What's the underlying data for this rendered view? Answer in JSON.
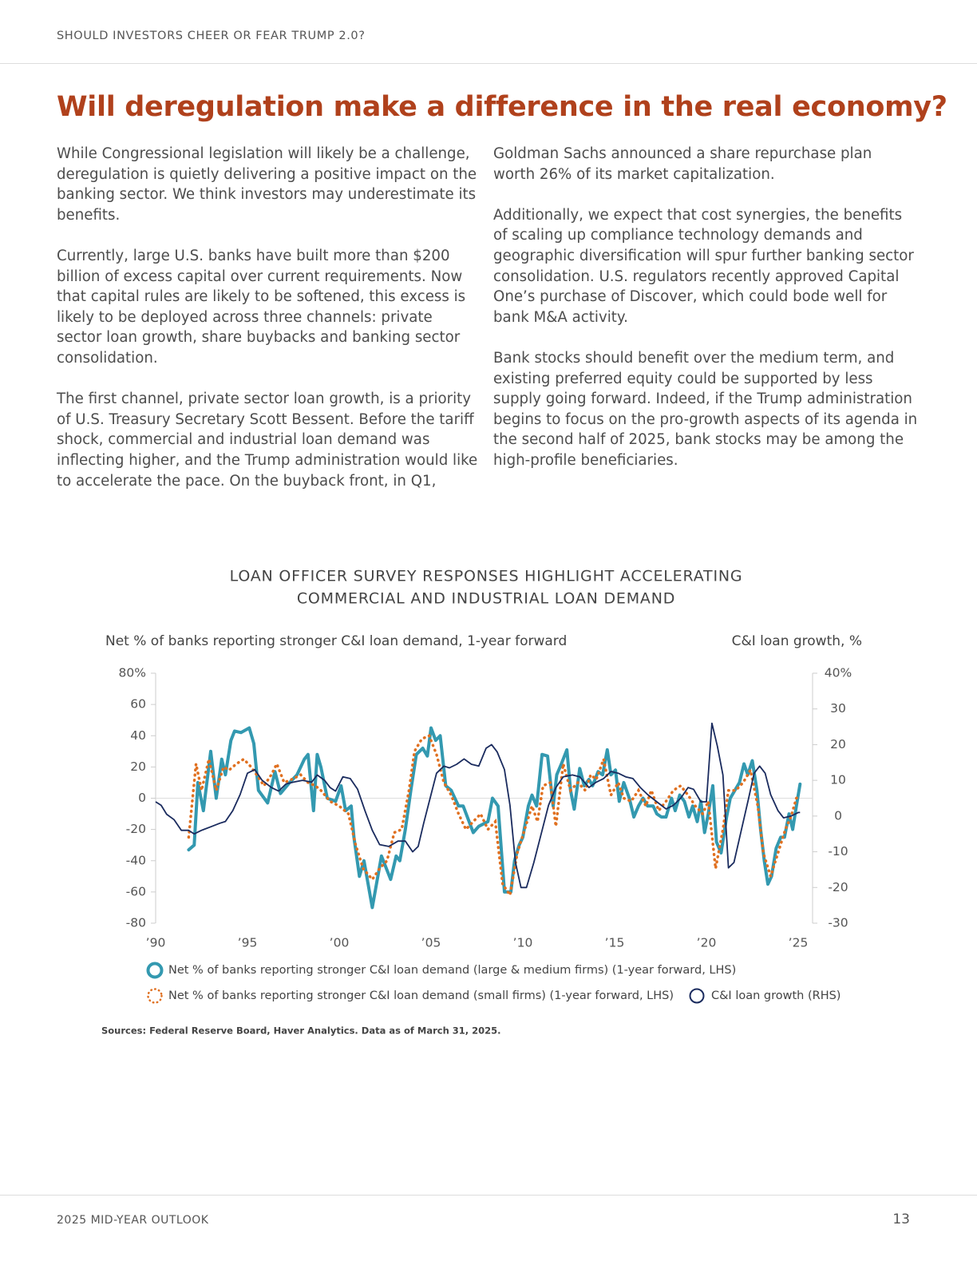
{
  "header": {
    "running_title": "SHOULD INVESTORS CHEER OR FEAR TRUMP 2.0?"
  },
  "title": "Will deregulation make a difference in the real economy?",
  "body": {
    "left_column": [
      "While Congressional legislation will likely be a challenge, deregulation is quietly delivering a positive impact on the banking sector. We think investors may underestimate its benefits.",
      "Currently, large U.S. banks have built more than $200 billion of excess capital over current requirements. Now that capital rules are likely to be softened, this excess is likely to be deployed across three channels: private sector loan growth, share buybacks and banking sector consolidation.",
      "The first channel, private sector loan growth, is a priority of U.S. Treasury Secretary Scott Bessent. Before the tariff shock, commercial and industrial loan demand was inflecting higher, and the Trump administration would like to accelerate the pace. On the buyback front, in Q1,"
    ],
    "right_column": [
      "Goldman Sachs announced a share repurchase plan worth 26% of its market capitalization.",
      "Additionally, we expect that cost synergies, the benefits of scaling up compliance technology demands and geographic diversification will spur further banking sector consolidation. U.S. regulators recently approved Capital One’s purchase of Discover, which could bode well for bank M&A activity.",
      "Bank stocks should benefit over the medium term, and existing preferred equity could be supported by less supply going forward. Indeed, if the Trump administration begins to focus on the pro-growth aspects of its agenda in the second half of 2025, bank stocks may be among the high-profile beneficiaries."
    ]
  },
  "chart_data": {
    "type": "line",
    "title": [
      "LOAN OFFICER SURVEY RESPONSES HIGHLIGHT ACCELERATING",
      "COMMERCIAL AND INDUSTRIAL LOAN DEMAND"
    ],
    "y_label": "Net % of banks reporting stronger C&I loan demand, 1-year forward",
    "y2_label": "C&I loan growth, %",
    "xlim": [
      1990,
      2025
    ],
    "xticks": [
      {
        "value": 1990,
        "label": "’90"
      },
      {
        "value": 1995,
        "label": "’95"
      },
      {
        "value": 2000,
        "label": "’00"
      },
      {
        "value": 2005,
        "label": "’05"
      },
      {
        "value": 2010,
        "label": "’10"
      },
      {
        "value": 2015,
        "label": "’15"
      },
      {
        "value": 2020,
        "label": "’20"
      },
      {
        "value": 2025,
        "label": "’25"
      }
    ],
    "ylim": [
      -80,
      80
    ],
    "yticks": [
      -80,
      -60,
      -40,
      -20,
      0,
      20,
      40,
      60,
      {
        "value": 80,
        "label": "80%"
      }
    ],
    "y2lim": [
      -30,
      40
    ],
    "y2ticks": [
      -30,
      -20,
      -10,
      0,
      10,
      20,
      30,
      {
        "value": 40,
        "label": "40%"
      }
    ],
    "series": [
      {
        "name": "Net % of banks reporting stronger C&I loan demand (large & medium firms) (1-year forward, LHS)",
        "color": "#3399b0",
        "style": "solid",
        "x": [
          1991.8,
          1992.1,
          1992.3,
          1992.6,
          1993.0,
          1993.3,
          1993.6,
          1993.8,
          1994.1,
          1994.3,
          1994.65,
          1995.1,
          1995.35,
          1995.6,
          1996.1,
          1996.5,
          1996.8,
          1997.3,
          1997.7,
          1998.1,
          1998.3,
          1998.6,
          1998.8,
          1999.0,
          1999.35,
          1999.8,
          2000.1,
          2000.35,
          2000.65,
          2000.8,
          2001.1,
          2001.35,
          2001.8,
          2002.3,
          2002.8,
          2003.1,
          2003.3,
          2003.6,
          2003.9,
          2004.2,
          2004.55,
          2004.8,
          2005.0,
          2005.25,
          2005.5,
          2005.8,
          2006.1,
          2006.5,
          2006.75,
          2007.3,
          2007.6,
          2008.1,
          2008.35,
          2008.65,
          2009.0,
          2009.35,
          2009.55,
          2009.8,
          2010.0,
          2010.3,
          2010.5,
          2010.75,
          2011.05,
          2011.35,
          2011.65,
          2011.85,
          2012.1,
          2012.4,
          2012.6,
          2012.8,
          2013.1,
          2013.35,
          2013.6,
          2013.8,
          2014.1,
          2014.35,
          2014.6,
          2014.8,
          2015.05,
          2015.25,
          2015.5,
          2015.8,
          2016.05,
          2016.3,
          2016.55,
          2016.8,
          2017.1,
          2017.3,
          2017.55,
          2017.8,
          2018.1,
          2018.3,
          2018.55,
          2018.8,
          2019.05,
          2019.25,
          2019.5,
          2019.7,
          2019.9,
          2020.1,
          2020.35,
          2020.55,
          2020.8,
          2021.1,
          2021.3,
          2021.55,
          2021.8,
          2022.05,
          2022.25,
          2022.5,
          2022.75,
          2022.95,
          2023.15,
          2023.35,
          2023.55,
          2023.8,
          2024.05,
          2024.25,
          2024.5,
          2024.7,
          2024.9,
          2025.1
        ],
        "values": [
          -33,
          -30,
          10,
          -8,
          30,
          0,
          25,
          15,
          37,
          43,
          42,
          45,
          35,
          5,
          -3,
          17,
          3,
          10,
          15,
          25,
          28,
          -8,
          28,
          20,
          0,
          -2,
          8,
          -8,
          -5,
          -25,
          -50,
          -40,
          -70,
          -37,
          -52,
          -37,
          -40,
          -20,
          5,
          28,
          32,
          27,
          45,
          37,
          40,
          8,
          5,
          -5,
          -5,
          -22,
          -18,
          -15,
          0,
          -5,
          -60,
          -60,
          -40,
          -30,
          -25,
          -5,
          2,
          -5,
          28,
          27,
          -5,
          15,
          22,
          31,
          5,
          -7,
          19,
          8,
          12,
          8,
          17,
          15,
          31,
          15,
          18,
          -2,
          10,
          0,
          -12,
          -5,
          0,
          -5,
          -5,
          -10,
          -12,
          -12,
          0,
          -8,
          2,
          -2,
          -12,
          -5,
          -15,
          -2,
          -22,
          -10,
          8,
          -28,
          -35,
          -12,
          0,
          5,
          10,
          22,
          15,
          24,
          5,
          -20,
          -40,
          -55,
          -50,
          -32,
          -25,
          -25,
          -10,
          -20,
          -5,
          9
        ]
      },
      {
        "name": "Net % of banks reporting stronger C&I loan demand (small firms) (1-year forward, LHS)",
        "color": "#e07020",
        "style": "dotted",
        "x": [
          1991.8,
          1992.2,
          1992.5,
          1992.9,
          1993.3,
          1993.7,
          1994.0,
          1994.4,
          1994.8,
          1995.2,
          1995.5,
          1995.9,
          1996.3,
          1996.6,
          1997.0,
          1997.4,
          1997.9,
          1998.3,
          1998.7,
          1999.0,
          1999.5,
          2000.0,
          2000.5,
          2000.9,
          2001.3,
          2001.8,
          2002.2,
          2002.6,
          2003.0,
          2003.4,
          2003.8,
          2004.1,
          2004.5,
          2004.9,
          2005.3,
          2005.7,
          2006.1,
          2006.5,
          2006.9,
          2007.3,
          2007.7,
          2008.1,
          2008.5,
          2008.9,
          2009.3,
          2009.7,
          2010.1,
          2010.5,
          2010.8,
          2011.1,
          2011.5,
          2011.8,
          2012.2,
          2012.6,
          2013.0,
          2013.4,
          2013.7,
          2014.0,
          2014.4,
          2014.8,
          2015.2,
          2015.5,
          2015.9,
          2016.3,
          2016.7,
          2017.0,
          2017.4,
          2017.8,
          2018.2,
          2018.6,
          2019.0,
          2019.4,
          2019.8,
          2020.1,
          2020.5,
          2020.9,
          2021.2,
          2021.6,
          2022.0,
          2022.4,
          2022.8,
          2023.1,
          2023.5,
          2023.9,
          2024.3,
          2024.6,
          2024.9,
          2025.1
        ],
        "values": [
          -25,
          22,
          5,
          25,
          5,
          20,
          18,
          22,
          25,
          20,
          15,
          8,
          15,
          22,
          10,
          12,
          15,
          10,
          8,
          5,
          -2,
          -5,
          -10,
          -30,
          -45,
          -52,
          -45,
          -40,
          -22,
          -20,
          5,
          30,
          38,
          40,
          28,
          10,
          2,
          -10,
          -20,
          -15,
          -10,
          -20,
          -15,
          -55,
          -62,
          -35,
          -20,
          -5,
          -15,
          8,
          10,
          -18,
          22,
          5,
          10,
          5,
          15,
          12,
          25,
          2,
          10,
          0,
          -2,
          5,
          -5,
          5,
          -8,
          -2,
          5,
          8,
          2,
          -5,
          -10,
          -2,
          -45,
          -20,
          5,
          5,
          10,
          18,
          -5,
          -35,
          -50,
          -35,
          -20,
          -12,
          0,
          2
        ]
      },
      {
        "name": "C&I loan growth (RHS)",
        "color": "#1a2b5e",
        "style": "thin",
        "axis": "y2",
        "x": [
          1990.0,
          1990.3,
          1990.6,
          1991.0,
          1991.4,
          1991.8,
          1992.1,
          1992.5,
          1993.0,
          1993.5,
          1993.8,
          1994.2,
          1994.6,
          1995.0,
          1995.4,
          1995.8,
          1996.3,
          1996.7,
          1997.1,
          1997.5,
          1998.0,
          1998.5,
          1998.8,
          1999.2,
          1999.5,
          1999.8,
          2000.2,
          2000.6,
          2001.0,
          2001.4,
          2001.8,
          2002.2,
          2002.7,
          2003.2,
          2003.6,
          2004.0,
          2004.3,
          2004.6,
          2005.0,
          2005.3,
          2005.7,
          2006.0,
          2006.4,
          2006.8,
          2007.2,
          2007.6,
          2008.0,
          2008.3,
          2008.6,
          2009.0,
          2009.3,
          2009.6,
          2009.9,
          2010.2,
          2010.6,
          2011.0,
          2011.4,
          2011.8,
          2012.2,
          2012.7,
          2013.1,
          2013.6,
          2014.0,
          2014.4,
          2014.8,
          2015.2,
          2015.6,
          2016.0,
          2016.4,
          2016.8,
          2017.3,
          2017.8,
          2018.2,
          2018.6,
          2019.0,
          2019.3,
          2019.7,
          2020.0,
          2020.3,
          2020.6,
          2020.9,
          2021.2,
          2021.5,
          2021.9,
          2022.3,
          2022.6,
          2022.9,
          2023.2,
          2023.5,
          2023.9,
          2024.2,
          2024.6,
          2025.0,
          2025.1
        ],
        "values": [
          4,
          3,
          0.5,
          -1,
          -4,
          -4,
          -5,
          -4,
          -3,
          -2,
          -1.5,
          1.5,
          6,
          12,
          13,
          10,
          8,
          7,
          9,
          9.5,
          10,
          9.5,
          11.5,
          10,
          8,
          7,
          11,
          10.5,
          7.5,
          1.5,
          -4,
          -8,
          -8.5,
          -7,
          -7,
          -10,
          -8.5,
          -2,
          6,
          12,
          14,
          13.5,
          14.5,
          16,
          14.5,
          14,
          19,
          20,
          18,
          13,
          3,
          -13,
          -20,
          -20,
          -13,
          -5,
          3,
          8,
          11,
          11.5,
          11,
          8,
          9.5,
          10.5,
          12.5,
          12,
          11,
          10.5,
          8,
          6,
          4,
          2,
          3,
          5,
          8,
          7.5,
          4,
          4,
          26,
          19.5,
          11.5,
          -14.5,
          -13,
          -4,
          5,
          12,
          14,
          12,
          6,
          1.5,
          -0.5,
          0,
          1,
          1
        ]
      }
    ],
    "source": "Sources: Federal Reserve Board, Haver Analytics. Data as of March 31, 2025."
  },
  "footer": {
    "publication": "2025 MID-YEAR OUTLOOK",
    "page_number": "13"
  }
}
